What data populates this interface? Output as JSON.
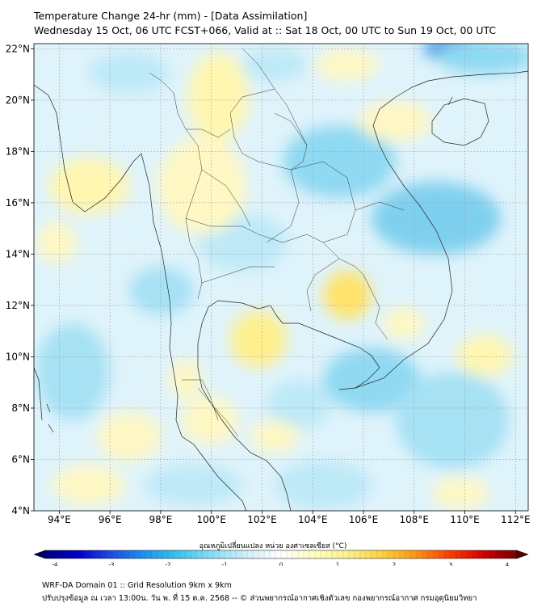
{
  "title": {
    "line1": "Temperature Change 24-hr (mm) - [Data Assimilation]",
    "line2": "Wednesday 15 Oct, 06 UTC FCST+066, Valid at :: Sat 18 Oct, 00 UTC to Sun 19 Oct, 00 UTC"
  },
  "map": {
    "lon_range": [
      93,
      112.5
    ],
    "lat_range": [
      4,
      22.2
    ],
    "lon_ticks": [
      94,
      96,
      98,
      100,
      102,
      104,
      106,
      108,
      110,
      112
    ],
    "lon_tick_labels": [
      "94°E",
      "96°E",
      "98°E",
      "100°E",
      "102°E",
      "104°E",
      "106°E",
      "108°E",
      "110°E",
      "112°E"
    ],
    "lat_ticks": [
      4,
      6,
      8,
      10,
      12,
      14,
      16,
      18,
      20,
      22
    ],
    "lat_tick_labels": [
      "4°N",
      "6°N",
      "8°N",
      "10°N",
      "12°N",
      "14°N",
      "16°N",
      "18°N",
      "20°N",
      "22°N"
    ],
    "background_color": "#dff3fb"
  },
  "colorbar": {
    "title": "อุณหภูมิเปลี่ยนแปลง หน่วย องศาเซลเซียส (°C)",
    "min": -4,
    "max": 4,
    "ticks": [
      -4,
      -3,
      -2,
      -1,
      0,
      1,
      2,
      3,
      4
    ],
    "tick_labels": [
      "-4",
      "-3",
      "-2",
      "-1",
      "0",
      "1",
      "2",
      "3",
      "4"
    ],
    "colors": [
      "#000080",
      "#0000cd",
      "#1e50e6",
      "#1e96f0",
      "#3cc8f0",
      "#8ce1f5",
      "#d2f0fa",
      "#ffffff",
      "#ffffbe",
      "#fff08c",
      "#ffd23c",
      "#ff9614",
      "#ff3c00",
      "#d20000",
      "#780000"
    ]
  },
  "footer": {
    "line1": "WRF-DA Domain 01 :: Grid Resolution 9km x 9km",
    "line2": "ปรับปรุงข้อมูล ณ เวลา 13:00น. วัน พ. ที่ 15 ต.ค. 2568 -- © ส่วนพยากรณ์อากาศเชิงตัวเลข กองพยากรณ์อากาศ กรมอุตุนิยมวิทยา"
  }
}
